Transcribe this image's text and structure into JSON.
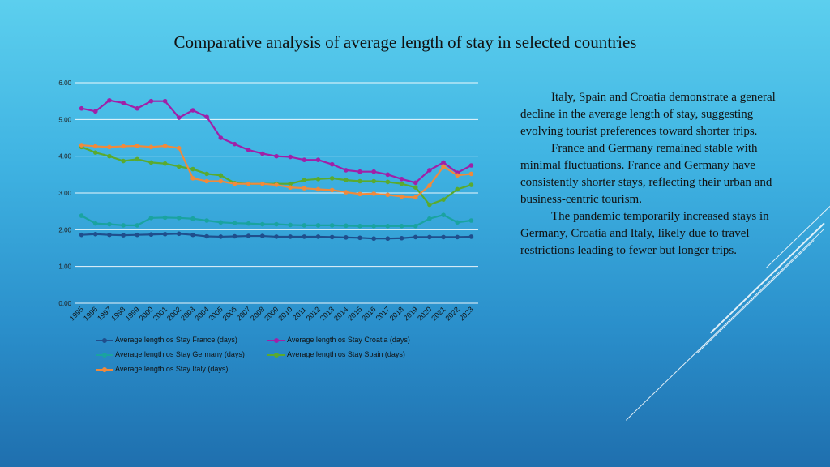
{
  "slide": {
    "title": "Comparative analysis of average length of stay in selected countries",
    "paragraphs": [
      "Italy, Spain and Croatia demonstrate a general decline in the average length of stay, suggesting evolving tourist preferences toward shorter trips.",
      "France and Germany remained stable with minimal fluctuations. France and Germany have consistently shorter stays, reflecting their urban and business-centric tourism.",
      "The pandemic temporarily increased stays in Germany, Croatia and Italy, likely due to travel restrictions leading to fewer but longer trips."
    ]
  },
  "chart_data": {
    "type": "line",
    "title": "",
    "xlabel": "",
    "ylabel": "",
    "ylim": [
      0,
      6
    ],
    "yticks": [
      "0.00",
      "1.00",
      "2.00",
      "3.00",
      "4.00",
      "5.00",
      "6.00"
    ],
    "grid": true,
    "legend_position": "bottom",
    "categories": [
      "1995",
      "1996",
      "1997",
      "1998",
      "1999",
      "2000",
      "2001",
      "2002",
      "2003",
      "2004",
      "2005",
      "2006",
      "2007",
      "2008",
      "2009",
      "2010",
      "2011",
      "2012",
      "2013",
      "2014",
      "2015",
      "2016",
      "2017",
      "2018",
      "2019",
      "2020",
      "2021",
      "2022",
      "2023"
    ],
    "series": [
      {
        "name": "Average length os Stay France (days)",
        "color": "#1f4e8c",
        "values": [
          1.86,
          1.88,
          1.86,
          1.85,
          1.86,
          1.87,
          1.88,
          1.89,
          1.86,
          1.82,
          1.81,
          1.82,
          1.83,
          1.83,
          1.81,
          1.81,
          1.81,
          1.81,
          1.8,
          1.79,
          1.78,
          1.76,
          1.76,
          1.77,
          1.8,
          1.8,
          1.8,
          1.8,
          1.81
        ]
      },
      {
        "name": "Average length os Stay Croatia (days)",
        "color": "#a020a8",
        "values": [
          5.3,
          5.22,
          5.52,
          5.45,
          5.3,
          5.5,
          5.5,
          5.05,
          5.25,
          5.07,
          4.5,
          4.33,
          4.17,
          4.07,
          4.0,
          3.98,
          3.9,
          3.9,
          3.78,
          3.62,
          3.58,
          3.58,
          3.5,
          3.38,
          3.28,
          3.62,
          3.83,
          3.55,
          3.75
        ]
      },
      {
        "name": "Average length os Stay Germany (days)",
        "color": "#1aa3a0",
        "values": [
          2.38,
          2.17,
          2.15,
          2.12,
          2.12,
          2.32,
          2.33,
          2.32,
          2.3,
          2.25,
          2.2,
          2.18,
          2.17,
          2.15,
          2.15,
          2.13,
          2.12,
          2.12,
          2.12,
          2.11,
          2.1,
          2.1,
          2.1,
          2.1,
          2.1,
          2.3,
          2.4,
          2.2,
          2.25
        ]
      },
      {
        "name": "Average length os Stay Spain (days)",
        "color": "#5aaa2e",
        "values": [
          4.25,
          4.1,
          4.0,
          3.87,
          3.92,
          3.83,
          3.8,
          3.72,
          3.65,
          3.52,
          3.48,
          3.27,
          3.25,
          3.25,
          3.25,
          3.25,
          3.35,
          3.38,
          3.4,
          3.35,
          3.32,
          3.32,
          3.3,
          3.25,
          3.15,
          2.68,
          2.82,
          3.1,
          3.22
        ]
      },
      {
        "name": "Average length os Stay Italy (days)",
        "color": "#f08a3c",
        "values": [
          4.3,
          4.27,
          4.25,
          4.27,
          4.28,
          4.25,
          4.28,
          4.22,
          3.4,
          3.32,
          3.32,
          3.25,
          3.25,
          3.25,
          3.22,
          3.15,
          3.13,
          3.1,
          3.08,
          3.02,
          2.97,
          2.98,
          2.95,
          2.9,
          2.88,
          3.2,
          3.72,
          3.48,
          3.52
        ]
      }
    ]
  }
}
